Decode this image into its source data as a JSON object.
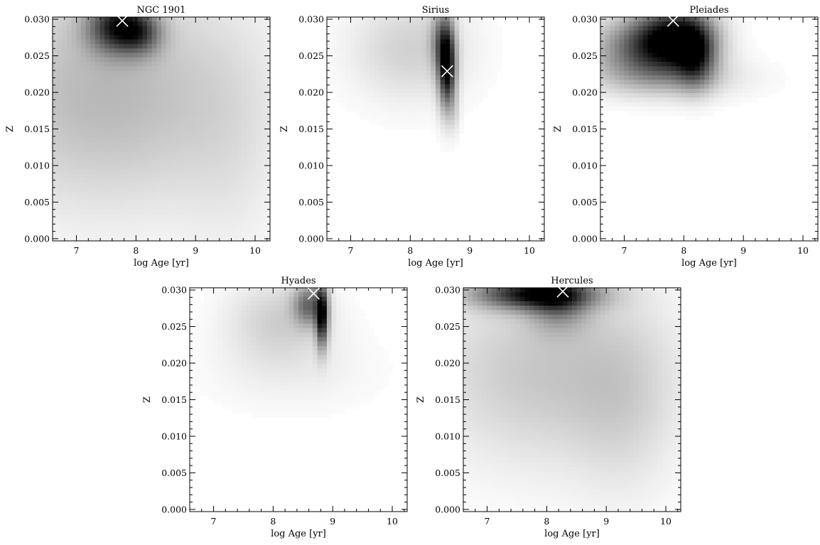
{
  "figure": {
    "description_type": "grid of probability density maps in age-metallicity plane"
  },
  "chart_data": [
    {
      "type": "heatmap",
      "title": "NGC 1901",
      "xlabel": "log Age [yr]",
      "ylabel": "Z",
      "xlim": [
        6.6,
        10.25
      ],
      "ylim": [
        -0.0003,
        0.0303
      ],
      "xticks": [
        7,
        8,
        9,
        10
      ],
      "xtick_labels": [
        "7",
        "8",
        "9",
        "10"
      ],
      "yticks": [
        0.0,
        0.005,
        0.01,
        0.015,
        0.02,
        0.025,
        0.03
      ],
      "ytick_labels": [
        "0.000",
        "0.005",
        "0.010",
        "0.015",
        "0.020",
        "0.025",
        "0.030"
      ],
      "best_fit": {
        "x": 7.77,
        "y": 0.0298
      },
      "density_components": [
        {
          "center": [
            7.7,
            0.029
          ],
          "sigma": [
            0.35,
            0.0025
          ],
          "peak": 0.75
        },
        {
          "center": [
            8.1,
            0.028
          ],
          "sigma": [
            0.25,
            0.002
          ],
          "peak": 0.35
        },
        {
          "center": [
            7.5,
            0.02
          ],
          "sigma": [
            1.6,
            0.011
          ],
          "peak": 0.28
        },
        {
          "center": [
            9.6,
            0.012
          ],
          "sigma": [
            0.6,
            0.012
          ],
          "peak": 0.06
        }
      ]
    },
    {
      "type": "heatmap",
      "title": "Sirius",
      "xlabel": "log Age [yr]",
      "ylabel": "Z",
      "xlim": [
        6.6,
        10.25
      ],
      "ylim": [
        -0.0003,
        0.0303
      ],
      "xticks": [
        7,
        8,
        9,
        10
      ],
      "xtick_labels": [
        "7",
        "8",
        "9",
        "10"
      ],
      "yticks": [
        0.0,
        0.005,
        0.01,
        0.015,
        0.02,
        0.025,
        0.03
      ],
      "ytick_labels": [
        "0.000",
        "0.005",
        "0.010",
        "0.015",
        "0.020",
        "0.025",
        "0.030"
      ],
      "best_fit": {
        "x": 8.62,
        "y": 0.0229
      },
      "density_components": [
        {
          "center": [
            8.62,
            0.0235
          ],
          "sigma": [
            0.1,
            0.004
          ],
          "peak": 0.95
        },
        {
          "center": [
            8.5,
            0.027
          ],
          "sigma": [
            0.12,
            0.003
          ],
          "peak": 0.35
        },
        {
          "center": [
            8.0,
            0.026
          ],
          "sigma": [
            0.7,
            0.005
          ],
          "peak": 0.18
        },
        {
          "center": [
            8.75,
            0.017
          ],
          "sigma": [
            0.06,
            0.002
          ],
          "peak": 0.08
        }
      ]
    },
    {
      "type": "heatmap",
      "title": "Pleiades",
      "xlabel": "log Age [yr]",
      "ylabel": "Z",
      "xlim": [
        6.6,
        10.25
      ],
      "ylim": [
        -0.0003,
        0.0303
      ],
      "xticks": [
        7,
        8,
        9,
        10
      ],
      "xtick_labels": [
        "7",
        "8",
        "9",
        "10"
      ],
      "yticks": [
        0.0,
        0.005,
        0.01,
        0.015,
        0.02,
        0.025,
        0.03
      ],
      "ytick_labels": [
        "0.000",
        "0.005",
        "0.010",
        "0.015",
        "0.020",
        "0.025",
        "0.030"
      ],
      "best_fit": {
        "x": 7.82,
        "y": 0.0298
      },
      "density_components": [
        {
          "center": [
            7.85,
            0.0275
          ],
          "sigma": [
            0.45,
            0.003
          ],
          "peak": 0.85
        },
        {
          "center": [
            7.3,
            0.026
          ],
          "sigma": [
            0.6,
            0.003
          ],
          "peak": 0.5
        },
        {
          "center": [
            8.2,
            0.025
          ],
          "sigma": [
            0.22,
            0.003
          ],
          "peak": 0.55
        },
        {
          "center": [
            7.7,
            0.022
          ],
          "sigma": [
            0.9,
            0.002
          ],
          "peak": 0.2
        }
      ]
    },
    {
      "type": "heatmap",
      "title": "Hyades",
      "xlabel": "log Age [yr]",
      "ylabel": "Z",
      "xlim": [
        6.6,
        10.25
      ],
      "ylim": [
        -0.0003,
        0.0303
      ],
      "xticks": [
        7,
        8,
        9,
        10
      ],
      "xtick_labels": [
        "7",
        "8",
        "9",
        "10"
      ],
      "yticks": [
        0.0,
        0.005,
        0.01,
        0.015,
        0.02,
        0.025,
        0.03
      ],
      "ytick_labels": [
        "0.000",
        "0.005",
        "0.010",
        "0.015",
        "0.020",
        "0.025",
        "0.030"
      ],
      "best_fit": {
        "x": 8.68,
        "y": 0.0295
      },
      "density_components": [
        {
          "center": [
            8.82,
            0.0265
          ],
          "sigma": [
            0.07,
            0.003
          ],
          "peak": 0.9
        },
        {
          "center": [
            8.6,
            0.028
          ],
          "sigma": [
            0.18,
            0.002
          ],
          "peak": 0.5
        },
        {
          "center": [
            8.1,
            0.026
          ],
          "sigma": [
            0.6,
            0.004
          ],
          "peak": 0.18
        },
        {
          "center": [
            8.3,
            0.019
          ],
          "sigma": [
            1.0,
            0.004
          ],
          "peak": 0.06
        }
      ]
    },
    {
      "type": "heatmap",
      "title": "Hercules",
      "xlabel": "log Age [yr]",
      "ylabel": "Z",
      "xlim": [
        6.6,
        10.25
      ],
      "ylim": [
        -0.0003,
        0.0303
      ],
      "xticks": [
        7,
        8,
        9,
        10
      ],
      "xtick_labels": [
        "7",
        "8",
        "9",
        "10"
      ],
      "yticks": [
        0.0,
        0.005,
        0.01,
        0.015,
        0.02,
        0.025,
        0.03
      ],
      "ytick_labels": [
        "0.000",
        "0.005",
        "0.010",
        "0.015",
        "0.020",
        "0.025",
        "0.030"
      ],
      "best_fit": {
        "x": 8.27,
        "y": 0.0298
      },
      "density_components": [
        {
          "center": [
            7.8,
            0.0295
          ],
          "sigma": [
            0.7,
            0.0015
          ],
          "peak": 0.85
        },
        {
          "center": [
            8.2,
            0.028
          ],
          "sigma": [
            0.35,
            0.0025
          ],
          "peak": 0.35
        },
        {
          "center": [
            8.0,
            0.019
          ],
          "sigma": [
            1.4,
            0.009
          ],
          "peak": 0.22
        },
        {
          "center": [
            9.3,
            0.014
          ],
          "sigma": [
            0.6,
            0.009
          ],
          "peak": 0.1
        }
      ]
    }
  ]
}
